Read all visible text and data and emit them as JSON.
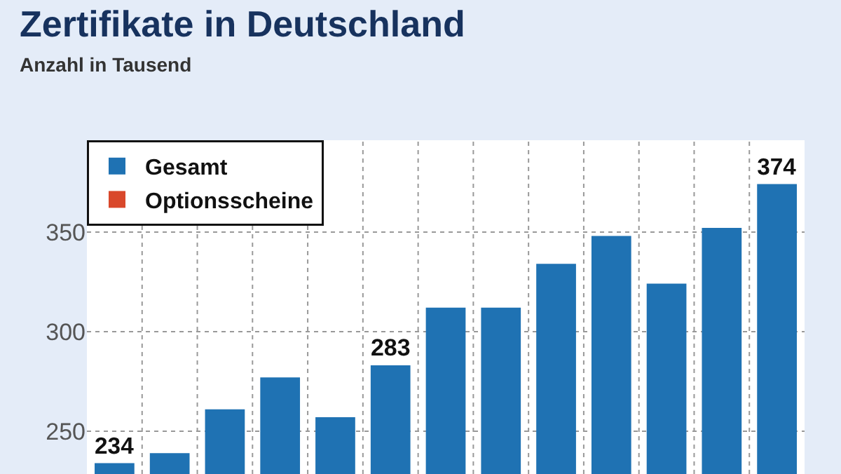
{
  "chart_data": {
    "type": "bar",
    "title": "Zertifikate in Deutschland",
    "subtitle": "Anzahl in Tausend",
    "categories": [
      null,
      null,
      null,
      null,
      null,
      null,
      null,
      null,
      null,
      null,
      null,
      null,
      null
    ],
    "series": [
      {
        "name": "Gesamt",
        "color": "#1f72b3",
        "values": [
          234,
          239,
          261,
          277,
          257,
          283,
          312,
          312,
          334,
          348,
          324,
          352,
          374
        ],
        "value_labels": [
          "234",
          null,
          null,
          null,
          null,
          "283",
          null,
          null,
          null,
          null,
          null,
          null,
          "374"
        ]
      },
      {
        "name": "Optionsscheine",
        "color": "#d9482b",
        "values": [
          null,
          null,
          null,
          null,
          null,
          null,
          null,
          null,
          null,
          null,
          null,
          null,
          null
        ]
      }
    ],
    "ylim": [
      228.5,
      396
    ],
    "yticks": [
      250,
      300,
      350
    ],
    "grid": true,
    "legend": "top left",
    "tick_labels": "y"
  }
}
